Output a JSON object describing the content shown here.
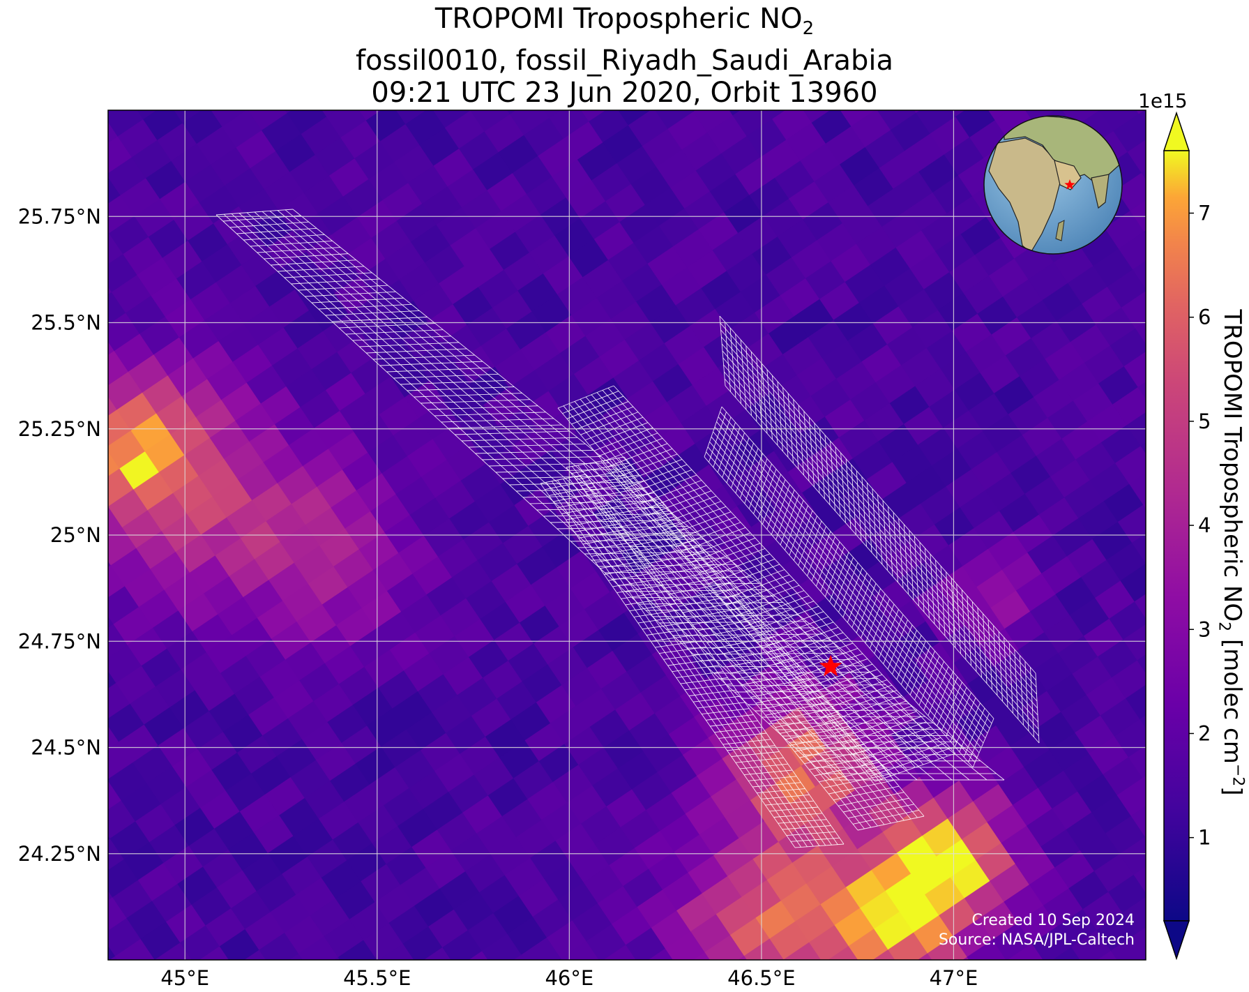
{
  "title": {
    "line1_prefix": "TROPOMI Tropospheric NO",
    "line1_sub": "2",
    "line2": "fossil0010, fossil_Riyadh_Saudi_Arabia",
    "line3": "09:21 UTC 23 Jun 2020, Orbit 13960"
  },
  "map": {
    "lon_range": [
      44.8,
      47.5
    ],
    "lat_range": [
      24.0,
      26.0
    ],
    "lon_ticks": [
      45.0,
      45.5,
      46.0,
      46.5,
      47.0
    ],
    "lon_tick_labels": [
      "45°E",
      "45.5°E",
      "46°E",
      "46.5°E",
      "47°E"
    ],
    "lat_ticks": [
      24.25,
      24.5,
      24.75,
      25.0,
      25.25,
      25.5,
      25.75
    ],
    "lat_tick_labels": [
      "24.25°N",
      "24.5°N",
      "24.75°N",
      "25°N",
      "25.25°N",
      "25.5°N",
      "25.75°N"
    ],
    "grid": true,
    "target_marker": {
      "lon": 46.68,
      "lat": 24.69,
      "color": "#ff0000",
      "shape": "star"
    },
    "inset_globe": {
      "placement": "top-right",
      "center_lon": 45,
      "center_lat": 20,
      "marker_color": "#ff0000"
    }
  },
  "colorbar": {
    "label_prefix": "TROPOMI Tropospheric NO",
    "label_sub": "2",
    "label_mid": " [molec cm",
    "label_sup": "−2",
    "label_suffix": "]",
    "exponent": "1e15",
    "ticks": [
      1,
      2,
      3,
      4,
      5,
      6,
      7
    ],
    "tick_labels": [
      "1",
      "2",
      "3",
      "4",
      "5",
      "6",
      "7"
    ],
    "range": [
      0.2,
      7.6
    ],
    "colormap": "plasma",
    "extend": "both"
  },
  "credits": {
    "created": "Created 10 Sep 2024",
    "source": "Source: NASA/JPL-Caltech"
  }
}
